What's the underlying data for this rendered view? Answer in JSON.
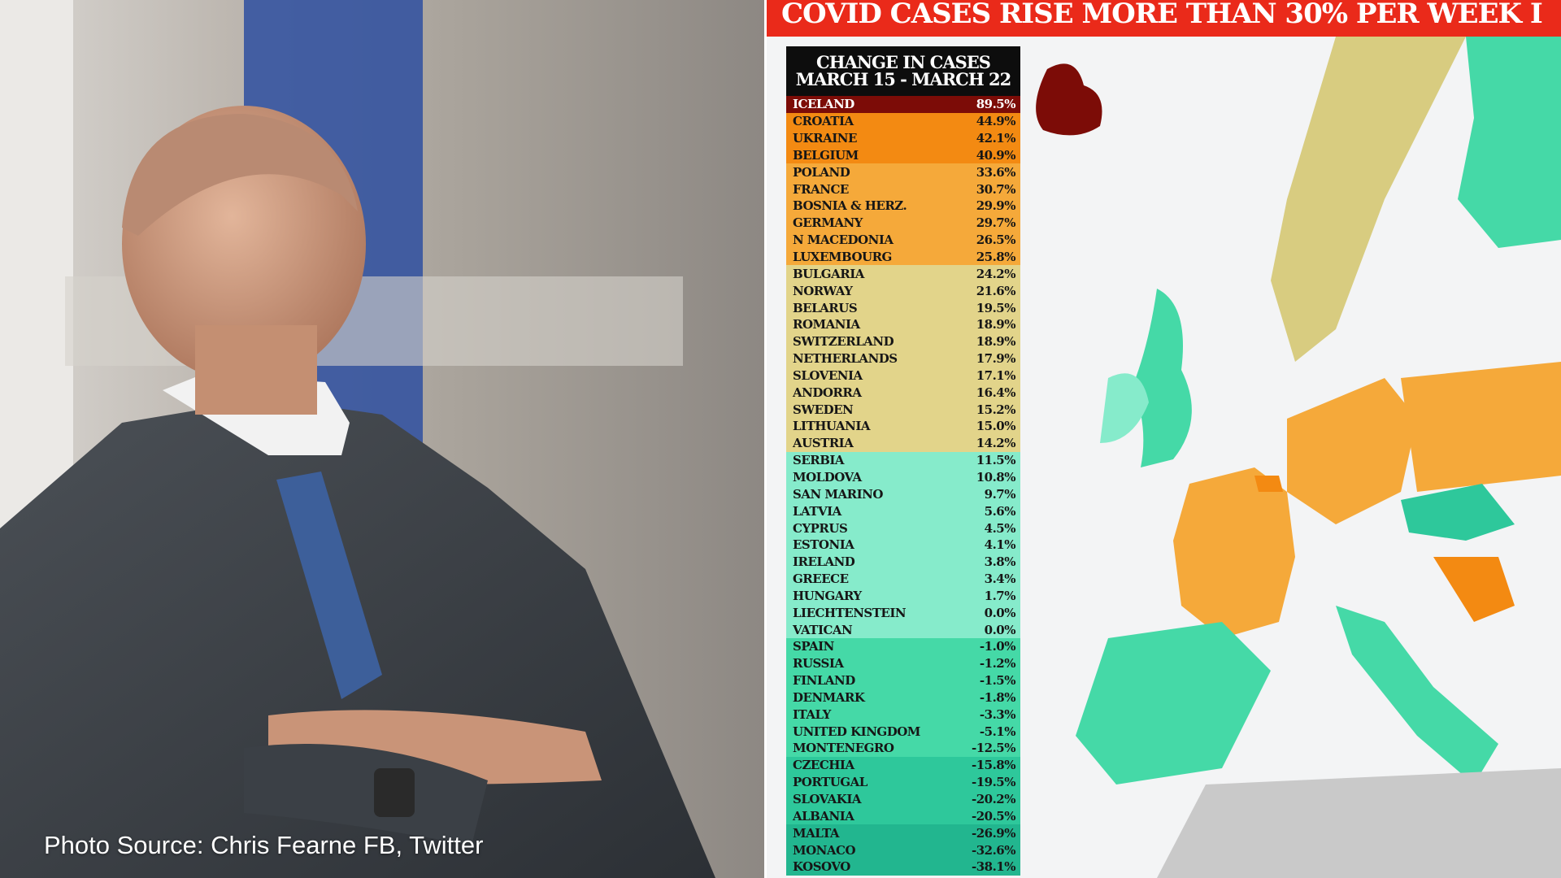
{
  "photo": {
    "caption": "Photo Source: Chris Fearne FB, Twitter"
  },
  "infographic": {
    "banner": "COVID CASES RISE MORE THAN 30% PER WEEK I",
    "table_title_line1": "CHANGE IN CASES",
    "table_title_line2": "MARCH 15 - MARCH 22",
    "band_colors": [
      "#7c0c07",
      "#f38a12",
      "#f5a93a",
      "#e2d48a",
      "#86ebcb",
      "#45d9a7",
      "#2ec89b",
      "#22b68f"
    ],
    "rows": [
      {
        "country": "ICELAND",
        "change": "89.5%",
        "band": 0
      },
      {
        "country": "CROATIA",
        "change": "44.9%",
        "band": 1
      },
      {
        "country": "UKRAINE",
        "change": "42.1%",
        "band": 1
      },
      {
        "country": "BELGIUM",
        "change": "40.9%",
        "band": 1
      },
      {
        "country": "POLAND",
        "change": "33.6%",
        "band": 2
      },
      {
        "country": "FRANCE",
        "change": "30.7%",
        "band": 2
      },
      {
        "country": "BOSNIA & HERZ.",
        "change": "29.9%",
        "band": 2
      },
      {
        "country": "GERMANY",
        "change": "29.7%",
        "band": 2
      },
      {
        "country": "N MACEDONIA",
        "change": "26.5%",
        "band": 2
      },
      {
        "country": "LUXEMBOURG",
        "change": "25.8%",
        "band": 2
      },
      {
        "country": "BULGARIA",
        "change": "24.2%",
        "band": 3
      },
      {
        "country": "NORWAY",
        "change": "21.6%",
        "band": 3
      },
      {
        "country": "BELARUS",
        "change": "19.5%",
        "band": 3
      },
      {
        "country": "ROMANIA",
        "change": "18.9%",
        "band": 3
      },
      {
        "country": "SWITZERLAND",
        "change": "18.9%",
        "band": 3
      },
      {
        "country": "NETHERLANDS",
        "change": "17.9%",
        "band": 3
      },
      {
        "country": "SLOVENIA",
        "change": "17.1%",
        "band": 3
      },
      {
        "country": "ANDORRA",
        "change": "16.4%",
        "band": 3
      },
      {
        "country": "SWEDEN",
        "change": "15.2%",
        "band": 3
      },
      {
        "country": "LITHUANIA",
        "change": "15.0%",
        "band": 3
      },
      {
        "country": "AUSTRIA",
        "change": "14.2%",
        "band": 3
      },
      {
        "country": "SERBIA",
        "change": "11.5%",
        "band": 4
      },
      {
        "country": "MOLDOVA",
        "change": "10.8%",
        "band": 4
      },
      {
        "country": "SAN MARINO",
        "change": "9.7%",
        "band": 4
      },
      {
        "country": "LATVIA",
        "change": "5.6%",
        "band": 4
      },
      {
        "country": "CYPRUS",
        "change": "4.5%",
        "band": 4
      },
      {
        "country": "ESTONIA",
        "change": "4.1%",
        "band": 4
      },
      {
        "country": "IRELAND",
        "change": "3.8%",
        "band": 4
      },
      {
        "country": "GREECE",
        "change": "3.4%",
        "band": 4
      },
      {
        "country": "HUNGARY",
        "change": "1.7%",
        "band": 4
      },
      {
        "country": "LIECHTENSTEIN",
        "change": "0.0%",
        "band": 4
      },
      {
        "country": "VATICAN",
        "change": "0.0%",
        "band": 4
      },
      {
        "country": "SPAIN",
        "change": "-1.0%",
        "band": 5
      },
      {
        "country": "RUSSIA",
        "change": "-1.2%",
        "band": 5
      },
      {
        "country": "FINLAND",
        "change": "-1.5%",
        "band": 5
      },
      {
        "country": "DENMARK",
        "change": "-1.8%",
        "band": 5
      },
      {
        "country": "ITALY",
        "change": "-3.3%",
        "band": 5
      },
      {
        "country": "UNITED KINGDOM",
        "change": "-5.1%",
        "band": 5
      },
      {
        "country": "MONTENEGRO",
        "change": "-12.5%",
        "band": 5
      },
      {
        "country": "CZECHIA",
        "change": "-15.8%",
        "band": 6
      },
      {
        "country": "PORTUGAL",
        "change": "-19.5%",
        "band": 6
      },
      {
        "country": "SLOVAKIA",
        "change": "-20.2%",
        "band": 6
      },
      {
        "country": "ALBANIA",
        "change": "-20.5%",
        "band": 6
      },
      {
        "country": "MALTA",
        "change": "-26.9%",
        "band": 7
      },
      {
        "country": "MONACO",
        "change": "-32.6%",
        "band": 7
      },
      {
        "country": "KOSOVO",
        "change": "-38.1%",
        "band": 7
      }
    ]
  }
}
